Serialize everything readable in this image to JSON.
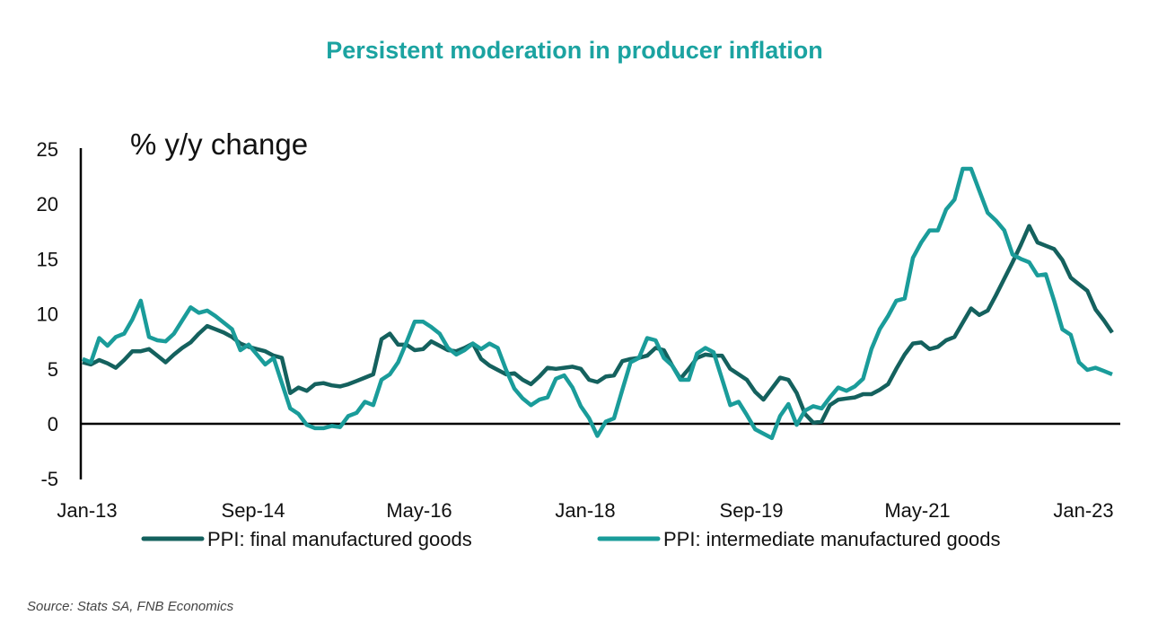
{
  "colors": {
    "title": "#1ba3a1",
    "final": "#14615e",
    "intermediate": "#1a9c9a",
    "axis": "#000000",
    "source": "#444444"
  },
  "chart_data": {
    "type": "line",
    "title": "Persistent moderation in producer inflation",
    "ylabel": "% y/y change",
    "xlabel": "",
    "x_start": "Jan-13",
    "x_frequency": "monthly",
    "x_tick_labels": [
      "Jan-13",
      "Sep-14",
      "May-16",
      "Jan-18",
      "Sep-19",
      "May-21",
      "Jan-23"
    ],
    "x_tick_months_from_start": [
      0,
      20,
      40,
      60,
      80,
      100,
      120
    ],
    "y_tick_labels": [
      "-5",
      "0",
      "5",
      "10",
      "15",
      "20",
      "25"
    ],
    "ylim": [
      -5,
      25
    ],
    "grid": false,
    "legend": "bottom",
    "series": [
      {
        "name": "PPI: final manufactured goods",
        "color_key": "final",
        "values": [
          5.6,
          5.4,
          5.8,
          5.5,
          5.1,
          5.8,
          6.6,
          6.6,
          6.8,
          6.2,
          5.6,
          6.3,
          6.9,
          7.4,
          8.2,
          8.9,
          8.6,
          8.3,
          7.9,
          7.3,
          7.0,
          6.8,
          6.6,
          6.2,
          6.0,
          2.8,
          3.3,
          3.0,
          3.6,
          3.7,
          3.5,
          3.4,
          3.6,
          3.9,
          4.2,
          4.5,
          7.7,
          8.2,
          7.2,
          7.2,
          6.7,
          6.8,
          7.5,
          7.1,
          6.7,
          6.6,
          6.9,
          7.3,
          5.9,
          5.3,
          4.9,
          4.5,
          4.6,
          4.0,
          3.6,
          4.3,
          5.1,
          5.0,
          5.1,
          5.2,
          5.0,
          4.0,
          3.8,
          4.3,
          4.4,
          5.7,
          5.9,
          6.0,
          6.2,
          6.9,
          6.7,
          5.3,
          4.1,
          5.0,
          6.0,
          6.3,
          6.2,
          6.2,
          5.0,
          4.5,
          4.0,
          2.9,
          2.2,
          3.2,
          4.2,
          4.0,
          2.8,
          0.9,
          0.1,
          0.2,
          1.7,
          2.2,
          2.3,
          2.4,
          2.7,
          2.7,
          3.1,
          3.6,
          5.0,
          6.3,
          7.3,
          7.4,
          6.8,
          7.0,
          7.6,
          7.9,
          9.2,
          10.5,
          9.9,
          10.3,
          11.7,
          13.2,
          14.7,
          16.3,
          18.0,
          16.5,
          16.2,
          15.9,
          14.9,
          13.3,
          12.7,
          12.1,
          10.4,
          9.4,
          8.3
        ]
      },
      {
        "name": "PPI: intermediate manufactured goods",
        "color_key": "intermediate",
        "values": [
          5.9,
          5.6,
          7.8,
          7.1,
          7.9,
          8.2,
          9.5,
          11.2,
          7.9,
          7.6,
          7.5,
          8.2,
          9.4,
          10.6,
          10.1,
          10.3,
          9.8,
          9.2,
          8.6,
          6.7,
          7.2,
          6.3,
          5.4,
          6.0,
          3.7,
          1.4,
          0.9,
          -0.1,
          -0.4,
          -0.4,
          -0.2,
          -0.3,
          0.7,
          1.0,
          2.0,
          1.7,
          4.0,
          4.5,
          5.6,
          7.4,
          9.3,
          9.3,
          8.8,
          8.2,
          6.9,
          6.3,
          6.7,
          7.3,
          6.8,
          7.3,
          6.9,
          4.9,
          3.2,
          2.3,
          1.7,
          2.2,
          2.4,
          4.1,
          4.4,
          3.3,
          1.6,
          0.5,
          -1.1,
          0.2,
          0.5,
          3.1,
          5.6,
          6.0,
          7.8,
          7.6,
          6.0,
          5.3,
          4.0,
          4.0,
          6.4,
          6.9,
          6.5,
          4.1,
          1.7,
          2.0,
          0.8,
          -0.5,
          -0.9,
          -1.3,
          0.7,
          1.8,
          -0.1,
          1.2,
          1.6,
          1.4,
          2.4,
          3.3,
          3.0,
          3.4,
          4.1,
          6.8,
          8.6,
          9.8,
          11.2,
          11.4,
          15.1,
          16.5,
          17.6,
          17.6,
          19.5,
          20.4,
          23.2,
          23.2,
          21.2,
          19.2,
          18.5,
          17.6,
          15.4,
          15.0,
          14.7,
          13.5,
          13.6,
          11.2,
          8.6,
          8.1,
          5.6,
          4.9,
          5.1,
          4.8,
          4.5
        ]
      }
    ]
  },
  "legend": {
    "items": [
      "PPI: final manufactured goods",
      "PPI: intermediate manufactured goods"
    ]
  },
  "source": "Source: Stats SA, FNB Economics"
}
